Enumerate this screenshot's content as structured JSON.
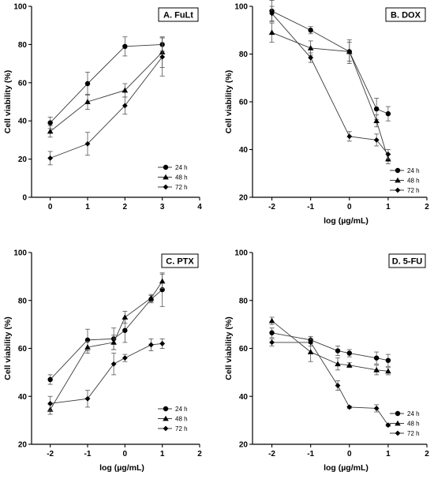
{
  "chart_data": [
    {
      "type": "line",
      "title": "A. FuLt",
      "xlabel": "",
      "ylabel": "Cell viability (%)",
      "xlim": [
        -0.5,
        4
      ],
      "ylim": [
        0,
        100
      ],
      "xticks": [
        0,
        1,
        2,
        3,
        4
      ],
      "yticks": [
        0,
        20,
        40,
        60,
        80,
        100
      ],
      "legend_position": "bottom-right",
      "series": [
        {
          "name": "24 h",
          "marker": "circle",
          "x": [
            0,
            1,
            2,
            3
          ],
          "y": [
            39,
            59.5,
            79,
            80
          ],
          "err": [
            3,
            6,
            5,
            3.5
          ]
        },
        {
          "name": "48 h",
          "marker": "triangle",
          "x": [
            0,
            1,
            2,
            3
          ],
          "y": [
            34.5,
            50,
            56,
            76
          ],
          "err": [
            3,
            4,
            3.5,
            8
          ]
        },
        {
          "name": "72 h",
          "marker": "diamond",
          "x": [
            0,
            1,
            2,
            3
          ],
          "y": [
            20.5,
            28,
            48,
            73.5
          ],
          "err": [
            3.5,
            6,
            4.5,
            10
          ]
        }
      ]
    },
    {
      "type": "line",
      "title": "B. DOX",
      "xlabel": "log (µg/mL)",
      "ylabel": "Cell viability (%)",
      "xlim": [
        -2.5,
        2
      ],
      "ylim": [
        20,
        100
      ],
      "xticks": [
        -2,
        -1,
        0,
        1,
        2
      ],
      "yticks": [
        20,
        40,
        60,
        80,
        100
      ],
      "legend_position": "bottom-right",
      "series": [
        {
          "name": "24 h",
          "marker": "circle",
          "x": [
            -2,
            -1,
            0,
            0.7,
            1
          ],
          "y": [
            98,
            90,
            81,
            57,
            55
          ],
          "err": [
            4.5,
            1.5,
            5,
            4.5,
            3
          ]
        },
        {
          "name": "48 h",
          "marker": "triangle",
          "x": [
            -2,
            -1,
            0,
            0.7,
            1
          ],
          "y": [
            89,
            82.5,
            81,
            52,
            36
          ],
          "err": [
            4,
            3,
            4,
            2.5,
            2
          ]
        },
        {
          "name": "72 h",
          "marker": "diamond",
          "x": [
            -2,
            -1,
            0,
            0.7,
            1
          ],
          "y": [
            97,
            78.5,
            45.5,
            44,
            38
          ],
          "err": [
            3,
            2,
            2,
            2.5,
            2
          ]
        }
      ]
    },
    {
      "type": "line",
      "title": "C. PTX",
      "xlabel": "log (µg/mL)",
      "ylabel": "Cell viability (%)",
      "xlim": [
        -2.5,
        2
      ],
      "ylim": [
        20,
        100
      ],
      "xticks": [
        -2,
        -1,
        0,
        1,
        2
      ],
      "yticks": [
        20,
        40,
        60,
        80,
        100
      ],
      "legend_position": "bottom-right",
      "series": [
        {
          "name": "24 h",
          "marker": "circle",
          "x": [
            -2,
            -1,
            -0.3,
            0,
            0.7,
            1
          ],
          "y": [
            47,
            63.5,
            64,
            67.5,
            80.5,
            84.5
          ],
          "err": [
            2,
            4.5,
            4.5,
            5,
            1.5,
            7
          ]
        },
        {
          "name": "48 h",
          "marker": "triangle",
          "x": [
            -2,
            -1,
            -0.3,
            0,
            0.7,
            1
          ],
          "y": [
            34.5,
            60.5,
            62.5,
            73,
            81,
            88
          ],
          "err": [
            2,
            2.5,
            3,
            2.5,
            1.5,
            3
          ]
        },
        {
          "name": "72 h",
          "marker": "diamond",
          "x": [
            -2,
            -1,
            -0.3,
            0,
            0.7,
            1
          ],
          "y": [
            37,
            39,
            53.5,
            56,
            61.5,
            62
          ],
          "err": [
            3,
            3.5,
            4.5,
            1.5,
            2.5,
            2
          ]
        }
      ]
    },
    {
      "type": "line",
      "title": "D. 5-FU",
      "xlabel": "log (µg/mL)",
      "ylabel": "Cell viability (%)",
      "xlim": [
        -2.5,
        2
      ],
      "ylim": [
        20,
        100
      ],
      "xticks": [
        -2,
        -1,
        0,
        1,
        2
      ],
      "yticks": [
        20,
        40,
        60,
        80,
        100
      ],
      "legend_position": "bottom-right",
      "series": [
        {
          "name": "24 h",
          "marker": "circle",
          "x": [
            -2,
            -1,
            -0.3,
            0,
            0.7,
            1
          ],
          "y": [
            66.5,
            63.5,
            59,
            58,
            56,
            55
          ],
          "err": [
            2,
            1.5,
            2,
            1.5,
            2.5,
            2.5
          ]
        },
        {
          "name": "48 h",
          "marker": "triangle",
          "x": [
            -2,
            -1,
            -0.3,
            0,
            0.7,
            1
          ],
          "y": [
            71.5,
            58.5,
            53.5,
            53,
            51,
            50.5
          ],
          "err": [
            1.5,
            4,
            2.5,
            1,
            2,
            1.5
          ]
        },
        {
          "name": "72 h",
          "marker": "diamond",
          "x": [
            -2,
            -1,
            -0.3,
            0,
            0.7,
            1
          ],
          "y": [
            62.5,
            62.5,
            44.5,
            35.5,
            35,
            28
          ],
          "err": [
            1.5,
            1.5,
            2,
            0.5,
            1.5,
            0.5
          ]
        }
      ]
    }
  ]
}
